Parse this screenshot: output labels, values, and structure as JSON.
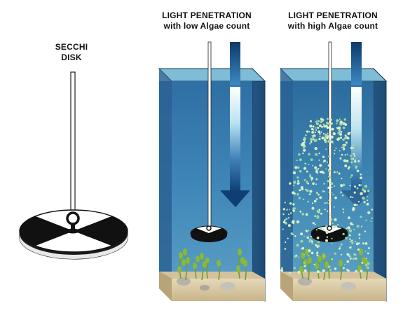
{
  "labels": {
    "secchi": [
      "SECCHI",
      "DISK"
    ],
    "low": [
      "LIGHT PENETRATION",
      "with low Algae count"
    ],
    "high": [
      "LIGHT PENETRATION",
      "with high Algae count"
    ]
  },
  "colors": {
    "water_front": "#3c7fb3",
    "water_side": "#2c5f89",
    "water_top": "#8cc6dd",
    "sediment": "#d9c9a6",
    "plants": "#8ab83a",
    "arrow_dark": "#0e3d6e",
    "algae": "#d8efc4"
  }
}
